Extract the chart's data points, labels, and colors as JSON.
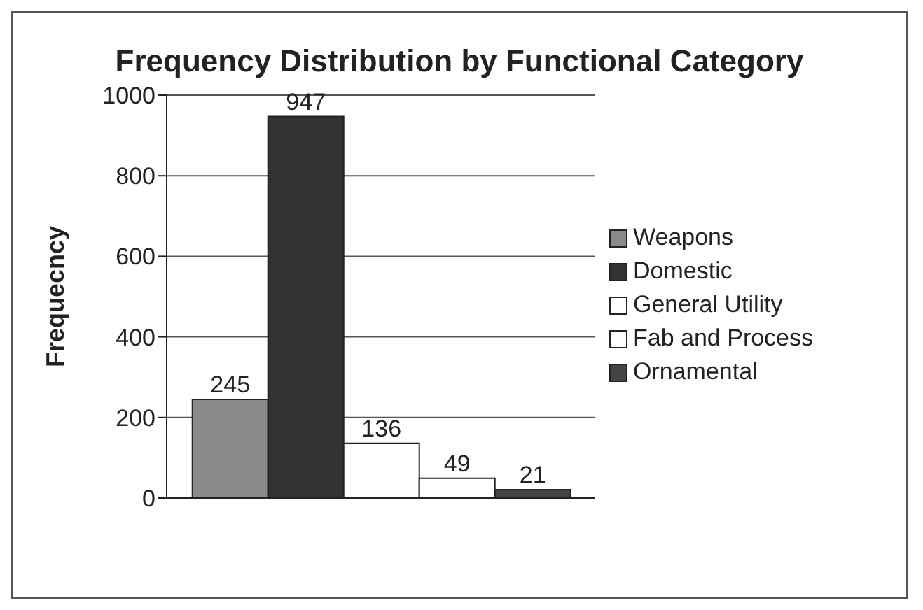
{
  "chart_data": {
    "type": "bar",
    "title": "Frequency Distribution by Functional Category",
    "ylabel": "Frequecncy",
    "categories": [
      null
    ],
    "series": [
      {
        "name": "Weapons",
        "color": "#8a8a8a",
        "values": [
          245
        ]
      },
      {
        "name": "Domestic",
        "color": "#333333",
        "values": [
          947
        ]
      },
      {
        "name": "General Utility",
        "color": "#ffffff",
        "values": [
          136
        ]
      },
      {
        "name": "Fab and Process",
        "color": "#ffffff",
        "values": [
          49
        ]
      },
      {
        "name": "Ornamental",
        "color": "#444444",
        "values": [
          21
        ]
      }
    ],
    "ylim": [
      0,
      1000
    ],
    "yticks": [
      0,
      200,
      400,
      600,
      800,
      1000
    ],
    "grid": "y",
    "legend": "right",
    "data_labels": true
  }
}
